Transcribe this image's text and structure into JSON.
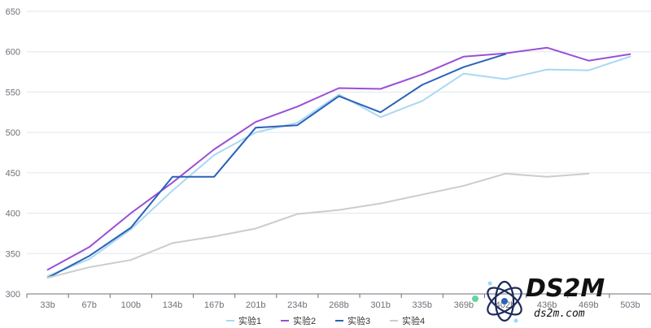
{
  "chart_data": {
    "type": "line",
    "categories": [
      "33b",
      "67b",
      "100b",
      "134b",
      "167b",
      "201b",
      "234b",
      "268b",
      "301b",
      "335b",
      "369b",
      "402b",
      "436b",
      "469b",
      "503b"
    ],
    "series": [
      {
        "name": "实验1",
        "color": "#a9d8f2",
        "values": [
          322,
          343,
          380,
          428,
          472,
          500,
          512,
          547,
          519,
          539,
          573,
          566,
          578,
          577,
          594
        ]
      },
      {
        "name": "实验2",
        "color": "#9a4fd6",
        "values": [
          330,
          358,
          400,
          438,
          479,
          513,
          532,
          555,
          554,
          572,
          594,
          598,
          605,
          589,
          597
        ]
      },
      {
        "name": "实验3",
        "color": "#2a62b8",
        "values": [
          320,
          347,
          382,
          445,
          445,
          506,
          509,
          545,
          525,
          559,
          581,
          597,
          null,
          null,
          null
        ]
      },
      {
        "name": "实验4",
        "color": "#cccccc",
        "values": [
          320,
          333,
          342,
          363,
          371,
          381,
          399,
          404,
          412,
          423,
          434,
          449,
          445,
          449,
          null
        ]
      }
    ],
    "yticks": [
      300,
      350,
      400,
      450,
      500,
      550,
      600,
      650
    ],
    "ylim": [
      300,
      650
    ],
    "grid": true,
    "legend": "bottom-center",
    "title": "",
    "xlabel": "",
    "ylabel": ""
  },
  "watermark": {
    "title": "DS2M",
    "subtitle": "ds2m.com"
  }
}
